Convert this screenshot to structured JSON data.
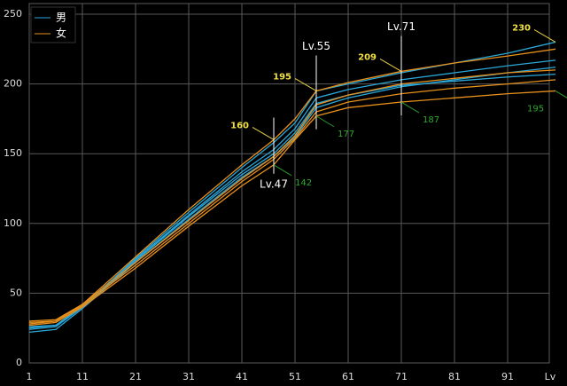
{
  "chart_data": {
    "type": "line",
    "xlabel": "Lv",
    "x": [
      1,
      6,
      11,
      21,
      31,
      41,
      47,
      51,
      55,
      61,
      71,
      81,
      91,
      100
    ],
    "xlim": [
      1,
      100
    ],
    "xticks": [
      1,
      11,
      21,
      31,
      41,
      51,
      61,
      71,
      81,
      91
    ],
    "ylim": [
      0,
      250
    ],
    "yticks": [
      0,
      50,
      100,
      150,
      200,
      250
    ],
    "grid": true,
    "legend": "upper left",
    "series": [
      {
        "name": "男",
        "color": "#2aa7d8",
        "lines": [
          [
            24,
            26,
            40,
            75,
            108,
            140,
            158,
            172,
            195,
            200,
            208,
            215,
            222,
            230
          ],
          [
            26,
            27,
            41,
            74,
            106,
            137,
            153,
            168,
            190,
            196,
            203,
            208,
            213,
            217
          ],
          [
            22,
            24,
            39,
            72,
            103,
            133,
            148,
            162,
            183,
            190,
            198,
            203,
            208,
            212
          ],
          [
            25,
            27,
            40,
            73,
            105,
            135,
            150,
            165,
            186,
            192,
            199,
            202,
            205,
            207
          ]
        ]
      },
      {
        "name": "女",
        "color": "#e8901c",
        "lines": [
          [
            28,
            30,
            42,
            76,
            110,
            142,
            160,
            175,
            195,
            201,
            209,
            215,
            220,
            225
          ],
          [
            30,
            31,
            42,
            72,
            102,
            132,
            148,
            163,
            185,
            192,
            200,
            204,
            208,
            210
          ],
          [
            27,
            29,
            40,
            68,
            98,
            127,
            142,
            160,
            177,
            183,
            187,
            190,
            193,
            195
          ],
          [
            29,
            30,
            41,
            70,
            100,
            130,
            146,
            161,
            180,
            187,
            193,
            197,
            200,
            203
          ]
        ]
      }
    ],
    "markers": [
      {
        "label": "Lv.47",
        "x": 47,
        "max": 160,
        "min": 142
      },
      {
        "label": "Lv.55",
        "x": 55,
        "max": 195,
        "min": 177
      },
      {
        "label": "Lv.71",
        "x": 71,
        "max": 209,
        "min": 187
      },
      {
        "x": 100,
        "max": 230,
        "min": 195
      }
    ]
  }
}
